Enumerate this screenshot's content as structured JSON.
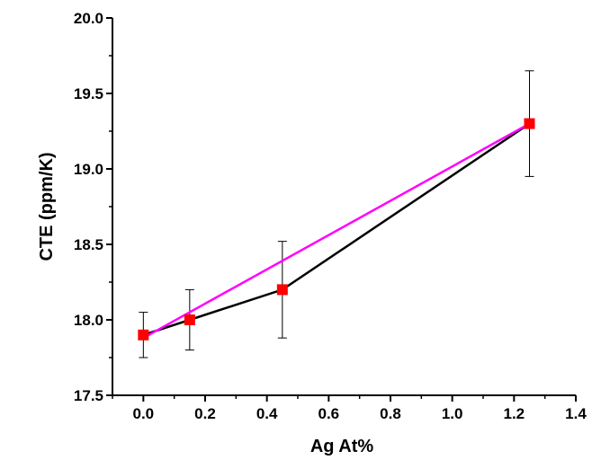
{
  "chart_data": {
    "type": "line",
    "title": "",
    "xlabel": "Ag At%",
    "ylabel": "CTE (ppm/K)",
    "xlim": [
      -0.1,
      1.4
    ],
    "ylim": [
      17.5,
      20.0
    ],
    "x_ticks": [
      0.0,
      0.2,
      0.4,
      0.6,
      0.8,
      1.0,
      1.2,
      1.4
    ],
    "x_tick_labels": [
      "0.0",
      "0.2",
      "0.4",
      "0.6",
      "0.8",
      "1.0",
      "1.2",
      "1.4"
    ],
    "y_ticks": [
      17.5,
      18.0,
      18.5,
      19.0,
      19.5,
      20.0
    ],
    "y_tick_labels": [
      "17.5",
      "18.0",
      "18.5",
      "19.0",
      "19.5",
      "20.0"
    ],
    "grid": false,
    "legend": "none",
    "series": [
      {
        "x": [
          0.0,
          0.15,
          0.45,
          1.25
        ],
        "y": [
          17.9,
          18.0,
          18.2,
          19.3
        ],
        "y_err": [
          0.15,
          0.2,
          0.32,
          0.35
        ],
        "line_color": "#000000",
        "marker": "square",
        "marker_color": "#ff0000"
      }
    ],
    "fit_line": {
      "x": [
        0.0,
        1.25
      ],
      "y": [
        17.88,
        19.3
      ],
      "color": "#ff00ff"
    }
  }
}
